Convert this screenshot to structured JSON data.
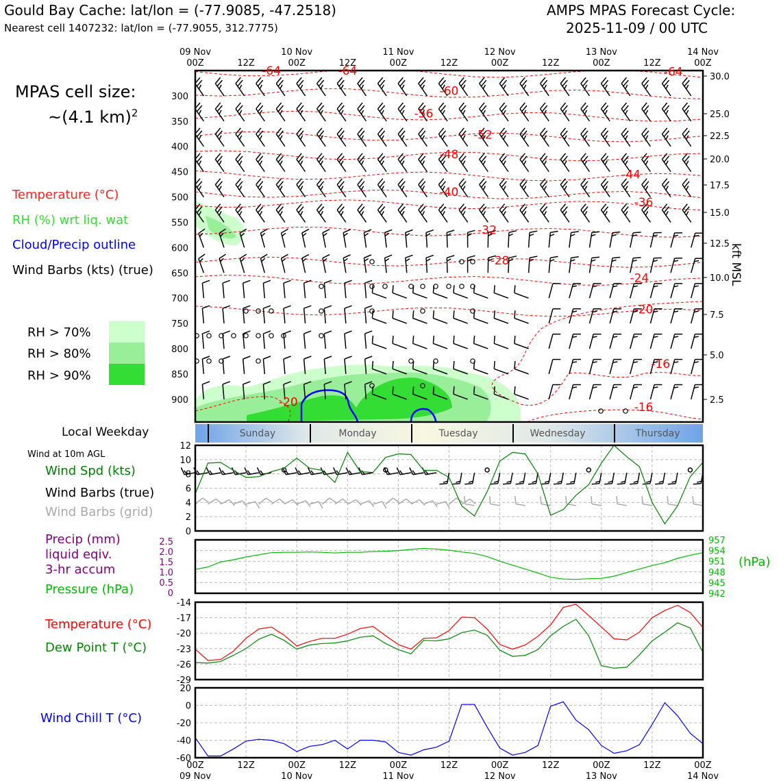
{
  "header": {
    "title_left": "Gould Bay Cache: lat/lon = (-77.9085, -47.2518)",
    "subtitle_left": "Nearest cell 1407232: lat/lon = (-77.9055, 312.7775)",
    "title_right_1": "AMPS MPAS Forecast Cycle:",
    "title_right_2": "2025-11-09 / 00 UTC"
  },
  "cell_size": {
    "line1": "MPAS cell size:",
    "line2": "~(4.1 km)",
    "sup": "2"
  },
  "legend": {
    "temperature": "Temperature (°C)",
    "rh": "RH (%) wrt liq. wat",
    "cloud": "Cloud/Precip outline",
    "wind": "Wind Barbs (kts) (true)",
    "rh70": "RH > 70%",
    "rh80": "RH > 80%",
    "rh90": "RH > 90%"
  },
  "colors": {
    "temp": "#ff0000",
    "rh_label": "#33dd33",
    "cloud": "#0000ff",
    "rh70": "#ccffcc",
    "rh80": "#99ee99",
    "rh90": "#33dd33",
    "wind_spd": "#008000",
    "precip": "#800080",
    "pressure": "#00bb00",
    "dewpoint": "#008800",
    "windchill": "#0000ff",
    "grid_barb": "#aaaaaa"
  },
  "time_axis": {
    "top_labels": [
      [
        "09 Nov",
        "00Z"
      ],
      [
        "",
        "12Z"
      ],
      [
        "10 Nov",
        "00Z"
      ],
      [
        "",
        "12Z"
      ],
      [
        "11 Nov",
        "00Z"
      ],
      [
        "",
        "12Z"
      ],
      [
        "12 Nov",
        "00Z"
      ],
      [
        "",
        "12Z"
      ],
      [
        "13 Nov",
        "00Z"
      ],
      [
        "",
        "12Z"
      ],
      [
        "14 Nov",
        "00Z"
      ]
    ],
    "bottom_labels": [
      [
        "00Z",
        "09 Nov"
      ],
      [
        "12Z",
        ""
      ],
      [
        "00Z",
        "10 Nov"
      ],
      [
        "12Z",
        ""
      ],
      [
        "00Z",
        "11 Nov"
      ],
      [
        "12Z",
        ""
      ],
      [
        "00Z",
        "12 Nov"
      ],
      [
        "12Z",
        ""
      ],
      [
        "00Z",
        "13 Nov"
      ],
      [
        "12Z",
        ""
      ],
      [
        "00Z",
        "14 Nov"
      ]
    ]
  },
  "weekday": {
    "label": "Local Weekday",
    "days": [
      "Sunday",
      "Monday",
      "Tuesday",
      "Wednesday",
      "Thursday"
    ]
  },
  "panel_labels": {
    "wind_header": "Wind at 10m AGL",
    "wind_spd": "Wind Spd (kts)",
    "wind_barbs": "Wind Barbs (true)",
    "wind_barbs_grid": "Wind Barbs (grid)",
    "precip_1": "Precip (mm)",
    "precip_2": "liquid eqiv.",
    "precip_3": "3-hr accum",
    "pressure": "Pressure (hPa)",
    "temperature": "Temperature (°C)",
    "dewpoint": "Dew Point T (°C)",
    "windchill": "Wind Chill T (°C)",
    "hpa_unit": "(hPa)",
    "kft_unit": "kft MSL"
  },
  "chart_data": [
    {
      "type": "contour",
      "name": "upper-air time-height section",
      "pressure_ticks": [
        "300",
        "350",
        "400",
        "450",
        "500",
        "550",
        "600",
        "650",
        "700",
        "750",
        "800",
        "850",
        "900"
      ],
      "height_ticks": [
        "30.0",
        "25.0",
        "22.5",
        "20.0",
        "17.5",
        "15.0",
        "12.5",
        "10.0",
        "7.5",
        "5.0",
        "2.5"
      ],
      "temperature_contour_labels": [
        {
          "label": "-64",
          "time_h": 18,
          "p": 250
        },
        {
          "label": "-64",
          "time_h": 36,
          "p": 250
        },
        {
          "label": "-64",
          "time_h": 113,
          "p": 252
        },
        {
          "label": "-60",
          "time_h": 60,
          "p": 290
        },
        {
          "label": "-56",
          "time_h": 54,
          "p": 335
        },
        {
          "label": "-52",
          "time_h": 68,
          "p": 377
        },
        {
          "label": "-48",
          "time_h": 60,
          "p": 415
        },
        {
          "label": "-44",
          "time_h": 103,
          "p": 455
        },
        {
          "label": "-40",
          "time_h": 60,
          "p": 490
        },
        {
          "label": "-36",
          "time_h": 106,
          "p": 510
        },
        {
          "label": "-32",
          "time_h": 69,
          "p": 565
        },
        {
          "label": "-28",
          "time_h": 72,
          "p": 625
        },
        {
          "label": "-24",
          "time_h": 105,
          "p": 660
        },
        {
          "label": "-20",
          "time_h": 106,
          "p": 722
        },
        {
          "label": "-16",
          "time_h": 110,
          "p": 830
        },
        {
          "label": "-16",
          "time_h": 106,
          "p": 915
        },
        {
          "label": "-20",
          "time_h": 22,
          "p": 905
        }
      ]
    },
    {
      "type": "line",
      "name": "wind speed 10m",
      "ylabel": "Wind Spd (kts)",
      "ylim": [
        0,
        12
      ],
      "yticks": [
        "0",
        "2",
        "4",
        "6",
        "8",
        "10",
        "12"
      ],
      "x_hours": [
        0,
        3,
        6,
        9,
        12,
        15,
        18,
        21,
        24,
        27,
        30,
        33,
        36,
        39,
        42,
        45,
        48,
        51,
        54,
        57,
        60,
        63,
        66,
        69,
        72,
        75,
        78,
        81,
        84,
        87,
        90,
        93,
        96,
        99,
        102,
        105,
        108,
        111,
        114,
        117,
        120
      ],
      "values": [
        5.2,
        9.5,
        9.6,
        8.5,
        7.5,
        7.6,
        8.3,
        8.8,
        10.2,
        8.8,
        8.5,
        6.8,
        11.0,
        8.3,
        8.2,
        10.3,
        10.8,
        10.7,
        8.5,
        8.5,
        7.5,
        3.5,
        2.1,
        5.5,
        9.8,
        11.0,
        10.8,
        8.0,
        2.2,
        3.0,
        5.0,
        6.5,
        9.5,
        12.0,
        10.4,
        9.0,
        4.0,
        1.0,
        3.5,
        7.6,
        9.6
      ]
    },
    {
      "type": "line",
      "name": "pressure",
      "ylabel": "Pressure (hPa)",
      "ylim": [
        942,
        957
      ],
      "yticks": [
        "942",
        "945",
        "948",
        "951",
        "954",
        "957"
      ],
      "precip_yticks": [
        "0",
        "0.5",
        "1.0",
        "1.5",
        "2.0",
        "2.5"
      ],
      "x_hours": [
        0,
        3,
        6,
        9,
        12,
        15,
        18,
        21,
        24,
        27,
        30,
        33,
        36,
        39,
        42,
        45,
        48,
        51,
        54,
        57,
        60,
        63,
        66,
        69,
        72,
        75,
        78,
        81,
        84,
        87,
        90,
        93,
        96,
        99,
        102,
        105,
        108,
        111,
        114,
        117,
        120
      ],
      "values": [
        948.7,
        949.4,
        950.8,
        951.4,
        952.2,
        952.8,
        953.4,
        953.5,
        953.5,
        953.6,
        953.5,
        953.3,
        953.5,
        953.5,
        953.7,
        953.8,
        954.0,
        954.3,
        954.6,
        954.4,
        954.1,
        953.6,
        953.2,
        952.3,
        951.0,
        949.9,
        948.8,
        947.7,
        946.5,
        946.0,
        945.9,
        946.1,
        946.2,
        946.8,
        947.8,
        948.8,
        949.8,
        950.6,
        951.8,
        952.7,
        953.4
      ]
    },
    {
      "type": "line",
      "name": "temperature and dew point",
      "ylim": [
        -29,
        -14
      ],
      "yticks": [
        "-29",
        "-26",
        "-23",
        "-20",
        "-17",
        "-14"
      ],
      "x_hours": [
        0,
        3,
        6,
        9,
        12,
        15,
        18,
        21,
        24,
        27,
        30,
        33,
        36,
        39,
        42,
        45,
        48,
        51,
        54,
        57,
        60,
        63,
        66,
        69,
        72,
        75,
        78,
        81,
        84,
        87,
        90,
        93,
        96,
        99,
        102,
        105,
        108,
        111,
        114,
        117,
        120
      ],
      "series": [
        {
          "name": "Temperature (°C)",
          "values": [
            -23.1,
            -25.3,
            -25.1,
            -23.5,
            -21.0,
            -19.2,
            -18.8,
            -20.4,
            -22.5,
            -21.6,
            -21.0,
            -21.0,
            -20.2,
            -19.1,
            -18.7,
            -20.5,
            -22.2,
            -23.1,
            -21.0,
            -20.9,
            -19.5,
            -16.9,
            -17.0,
            -19.2,
            -22.2,
            -23.1,
            -22.3,
            -20.6,
            -18.4,
            -15.0,
            -14.4,
            -16.6,
            -18.8,
            -21.1,
            -21.3,
            -19.8,
            -17.0,
            -15.6,
            -14.6,
            -16.0,
            -18.9
          ]
        },
        {
          "name": "Dew Point T (°C)",
          "values": [
            -25.7,
            -25.8,
            -25.5,
            -24.3,
            -23.0,
            -21.2,
            -20.2,
            -21.4,
            -23.1,
            -22.3,
            -22.0,
            -21.9,
            -21.5,
            -20.8,
            -20.5,
            -22.0,
            -23.2,
            -24.0,
            -21.4,
            -21.5,
            -21.1,
            -19.9,
            -19.4,
            -20.4,
            -23.3,
            -24.5,
            -24.3,
            -23.2,
            -20.5,
            -18.7,
            -17.3,
            -20.5,
            -26.3,
            -26.8,
            -26.6,
            -24.2,
            -21.5,
            -19.8,
            -18.0,
            -19.0,
            -23.7
          ]
        }
      ]
    },
    {
      "type": "line",
      "name": "wind chill",
      "ylabel": "Wind Chill T (°C)",
      "ylim": [
        -60,
        20
      ],
      "yticks": [
        "-60",
        "-40",
        "-20",
        "0",
        "20"
      ],
      "x_hours": [
        0,
        3,
        6,
        9,
        12,
        15,
        18,
        21,
        24,
        27,
        30,
        33,
        36,
        39,
        42,
        45,
        48,
        51,
        54,
        57,
        60,
        63,
        66,
        69,
        72,
        75,
        78,
        81,
        84,
        87,
        90,
        93,
        96,
        99,
        102,
        105,
        108,
        111,
        114,
        117,
        120
      ],
      "values": [
        -37,
        -58,
        -58,
        -50,
        -41,
        -39,
        -40,
        -44,
        -53,
        -47,
        -45,
        -40,
        -50,
        -40,
        -40,
        -42,
        -54,
        -57,
        -51,
        -48,
        -41,
        1,
        1,
        -25,
        -49,
        -57,
        -54,
        -46,
        -1,
        4,
        -17,
        -28,
        -46,
        -55,
        -52,
        -45,
        -22,
        3,
        -12,
        -32,
        -44
      ]
    }
  ]
}
